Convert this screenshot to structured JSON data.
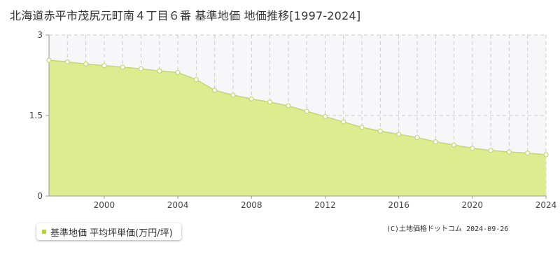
{
  "page": {
    "title": "北海道赤平市茂尻元町南４丁目６番 基準地価 地価推移[1997-2024]",
    "copyright": "(C)土地価格ドットコム 2024-09-26"
  },
  "legend": {
    "label": "基準地価 平均坪単価(万円/坪)"
  },
  "colors": {
    "area_fill": "#dcec8f",
    "line": "#c2d96a",
    "marker_fill": "#ffffff",
    "marker_stroke": "#c2d96a",
    "legend_swatch": "#b5d33a",
    "grid": "#cccccc",
    "axis": "#999999",
    "future_band": "#f7f7f9"
  },
  "chart_data": {
    "type": "area",
    "x": [
      1997,
      1998,
      1999,
      2000,
      2001,
      2002,
      2003,
      2004,
      2005,
      2006,
      2007,
      2008,
      2009,
      2010,
      2011,
      2012,
      2013,
      2014,
      2015,
      2016,
      2017,
      2018,
      2019,
      2020,
      2021,
      2022,
      2023,
      2024
    ],
    "series": [
      {
        "name": "基準地価 平均坪単価(万円/坪)",
        "values": [
          2.53,
          2.5,
          2.46,
          2.43,
          2.4,
          2.37,
          2.33,
          2.3,
          2.17,
          1.97,
          1.88,
          1.81,
          1.75,
          1.68,
          1.58,
          1.48,
          1.38,
          1.28,
          1.21,
          1.15,
          1.09,
          1.01,
          0.95,
          0.89,
          0.85,
          0.82,
          0.8,
          0.77
        ]
      }
    ],
    "xlim": [
      1997,
      2024
    ],
    "ylim": [
      0,
      3
    ],
    "xticks": [
      "2000",
      "2004",
      "2008",
      "2012",
      "2016",
      "2020",
      "2024"
    ],
    "yticks": [
      "0",
      "1.5",
      "3"
    ],
    "grid": true,
    "legend_position": "bottom-left",
    "xlabel": "",
    "ylabel": ""
  }
}
